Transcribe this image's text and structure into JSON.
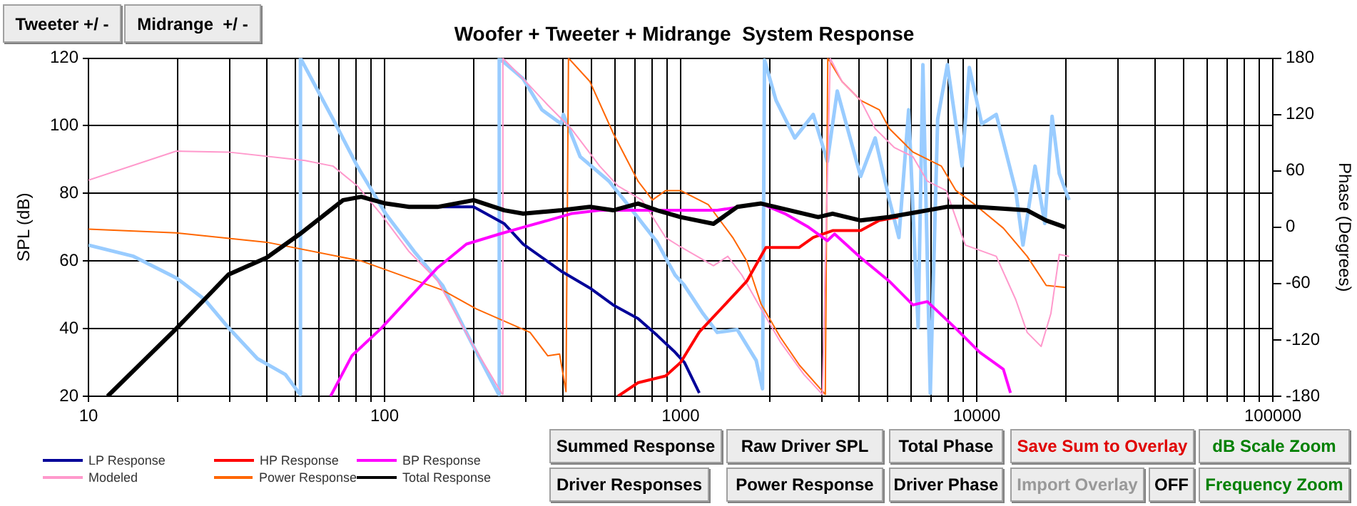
{
  "chart_data": {
    "type": "line",
    "title": "Woofer + Tweeter + Midrange  System Response",
    "ylabel": "SPL (dB)",
    "y2label": "Phase (Degrees)",
    "log": "x",
    "grid": true,
    "legend": "bottom",
    "xlim": [
      10,
      100000
    ],
    "xticks": [
      10,
      {
        "value": 20,
        "label": null
      },
      {
        "value": 30,
        "label": null
      },
      {
        "value": 40,
        "label": null
      },
      {
        "value": 50,
        "label": null
      },
      {
        "value": 60,
        "label": null
      },
      {
        "value": 70,
        "label": null
      },
      {
        "value": 80,
        "label": null
      },
      {
        "value": 90,
        "label": null
      },
      100,
      {
        "value": 200,
        "label": null
      },
      {
        "value": 300,
        "label": null
      },
      {
        "value": 400,
        "label": null
      },
      {
        "value": 500,
        "label": null
      },
      {
        "value": 600,
        "label": null
      },
      {
        "value": 700,
        "label": null
      },
      {
        "value": 800,
        "label": null
      },
      {
        "value": 900,
        "label": null
      },
      1000,
      {
        "value": 2000,
        "label": null
      },
      {
        "value": 3000,
        "label": null
      },
      {
        "value": 4000,
        "label": null
      },
      {
        "value": 5000,
        "label": null
      },
      {
        "value": 6000,
        "label": null
      },
      {
        "value": 7000,
        "label": null
      },
      {
        "value": 8000,
        "label": null
      },
      {
        "value": 9000,
        "label": null
      },
      10000,
      {
        "value": 20000,
        "label": null
      },
      {
        "value": 30000,
        "label": null
      },
      {
        "value": 40000,
        "label": null
      },
      {
        "value": 50000,
        "label": null
      },
      {
        "value": 60000,
        "label": null
      },
      {
        "value": 70000,
        "label": null
      },
      {
        "value": 80000,
        "label": null
      },
      {
        "value": 90000,
        "label": null
      },
      100000
    ],
    "ylim": [
      20,
      120
    ],
    "yticks": [
      20,
      40,
      60,
      80,
      100,
      120
    ],
    "y2lim": [
      -180,
      180
    ],
    "y2ticks": [
      -180,
      -120,
      -60,
      0,
      60,
      120,
      180
    ],
    "series": [
      {
        "name": "LP Response",
        "color": "#000099",
        "x": [
          101,
          121,
          151,
          200,
          254,
          294,
          395,
          494,
          592,
          718,
          833,
          958,
          1030,
          1156
        ],
        "values": [
          77,
          76,
          76,
          76,
          71,
          65,
          57,
          52,
          47,
          43,
          38,
          33,
          30,
          21
        ]
      },
      {
        "name": "HP Response",
        "color": "#ff0000",
        "x": [
          614,
          718,
          890,
          1000,
          1156,
          1443,
          1672,
          1941,
          2510,
          2805,
          3260,
          4055,
          4690,
          5430
        ],
        "values": [
          20,
          24,
          26,
          30,
          39,
          48,
          54,
          64,
          64,
          67,
          69,
          69,
          72,
          73
        ]
      },
      {
        "name": "BP Response",
        "color": "#ff00ff",
        "x": [
          65.7,
          77.6,
          97.2,
          121,
          151,
          189,
          245,
          294,
          356,
          427,
          533,
          1000,
          1330,
          1870,
          2250,
          2705,
          3130,
          3310,
          4055,
          5070,
          6090,
          6810,
          8510,
          10240,
          12300,
          13000
        ],
        "values": [
          20,
          32,
          40,
          49,
          58,
          65,
          68,
          70,
          72,
          74,
          75,
          75,
          75,
          77,
          74,
          70,
          66,
          68,
          61,
          54,
          47,
          48,
          40,
          33,
          28,
          21
        ]
      },
      {
        "name": "Modeled",
        "color": "#ff99cc",
        "axis": "y2",
        "x": [
          10,
          19.8,
          29.7,
          53.9,
          67,
          80.9,
          97.2,
          121,
          151,
          196,
          250,
          251,
          294,
          356,
          427,
          533,
          614,
          739,
          890,
          1000,
          1291,
          1443,
          1610,
          1870,
          2170,
          2610,
          3010,
          3200,
          3510,
          4055,
          4540,
          5260,
          6090,
          6810,
          7890,
          9150,
          11640,
          13540,
          14800,
          16500,
          17800,
          19000,
          20500
        ],
        "values": [
          50,
          81,
          80,
          71,
          65,
          44,
          14,
          -26,
          -57,
          -122,
          -178,
          180,
          158,
          130,
          105,
          65,
          44,
          29,
          -11,
          -21,
          -41,
          -31,
          -51,
          -87,
          -122,
          -157,
          -178,
          180,
          155,
          135,
          105,
          85,
          75,
          49,
          39,
          -19,
          -31,
          -77,
          -112,
          -127,
          -92,
          -29,
          -31
        ]
      },
      {
        "name": "Power Response",
        "color": "#ff6600",
        "axis": "y2",
        "x": [
          10,
          19.8,
          40,
          83.5,
          157,
          204,
          310,
          356,
          390,
          410,
          418,
          494,
          592,
          718,
          803,
          890,
          1000,
          1240,
          1500,
          1672,
          1870,
          2170,
          2520,
          3080,
          3140,
          3510,
          4055,
          4690,
          5070,
          6090,
          7600,
          8510,
          9860,
          12300,
          14800,
          17170,
          19900
        ],
        "values": [
          -2,
          -6,
          -16,
          -36,
          -67,
          -87,
          -112,
          -137,
          -135,
          -175,
          180,
          155,
          100,
          49,
          29,
          39,
          39,
          24,
          -11,
          -36,
          -82,
          -117,
          -147,
          -178,
          180,
          155,
          135,
          125,
          105,
          80,
          65,
          39,
          24,
          -1,
          -31,
          -62,
          -64
        ]
      },
      {
        "name": "Total Response",
        "color": "#000000",
        "x": [
          11.6,
          19.8,
          29.7,
          40,
          51.8,
          72.4,
          83.5,
          101,
          121,
          151,
          200,
          254,
          294,
          395,
          494,
          592,
          718,
          833,
          1000,
          1291,
          1553,
          1870,
          2335,
          2915,
          3260,
          4055,
          5070,
          6810,
          7890,
          9860,
          14800,
          17170,
          19900
        ],
        "values": [
          20,
          40,
          56,
          61,
          68,
          78,
          79,
          77,
          76,
          76,
          78,
          75,
          74,
          75,
          76,
          75,
          77,
          75,
          73,
          71,
          76,
          77,
          75,
          73,
          74,
          72,
          73,
          75,
          76,
          76,
          75,
          72,
          70
        ]
      },
      {
        "color": "#99ccff",
        "axis": "y2",
        "x": [
          10,
          14.2,
          19.8,
          24.7,
          29.7,
          37.2,
          46.3,
          51.8,
          52,
          67,
          80.9,
          101,
          126,
          157,
          196,
          243,
          244,
          294,
          340,
          395,
          402,
          458,
          573,
          663,
          833,
          958,
          1030,
          1190,
          1330,
          1553,
          1800,
          1890,
          1920,
          2100,
          2430,
          2805,
          3130,
          3380,
          4055,
          4540,
          5070,
          5460,
          5890,
          6340,
          6580,
          6970,
          7380,
          7960,
          8920,
          9440,
          10400,
          11640,
          12550,
          13540,
          14330,
          15740,
          16980,
          17970,
          19000,
          20500
        ],
        "values": [
          -19,
          -31,
          -54,
          -77,
          -107,
          -140,
          -157,
          -178,
          180,
          115,
          65,
          14,
          -26,
          -62,
          -122,
          -178,
          180,
          158,
          125,
          110,
          120,
          75,
          49,
          24,
          -16,
          -51,
          -62,
          -92,
          -112,
          -109,
          -142,
          -172,
          178,
          135,
          95,
          120,
          70,
          145,
          54,
          95,
          29,
          -11,
          125,
          -107,
          173,
          -177,
          115,
          173,
          65,
          170,
          110,
          120,
          80,
          39,
          -19,
          65,
          4,
          118,
          57,
          29
        ]
      }
    ],
    "annotations": [
      "Tweeter +/ -",
      "Midrange  +/ -",
      "Summed Response",
      "Raw Driver SPL",
      "Total Phase",
      "Save Sum to Overlay",
      "dB Scale Zoom",
      "Driver Responses",
      "Power Response",
      "Driver Phase",
      "Import Overlay",
      "OFF",
      "Frequency Zoom"
    ]
  }
}
